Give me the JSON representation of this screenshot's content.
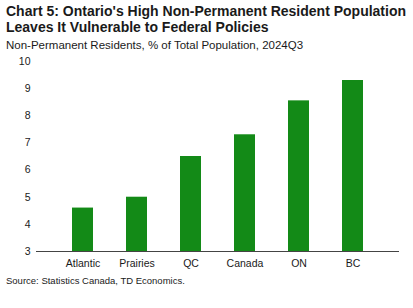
{
  "chart_data": {
    "type": "bar",
    "title": "Chart 5: Ontario's High Non-Permanent Resident Population Leaves It Vulnerable to Federal Policies",
    "subtitle": "Non-Permanent Residents, % of Total Population, 2024Q3",
    "caption": "Source: Statistics Canada, TD Economics.",
    "categories": [
      "Atlantic",
      "Prairies",
      "QC",
      "Canada",
      "ON",
      "BC"
    ],
    "values": [
      4.6,
      5.0,
      6.5,
      7.3,
      8.55,
      9.3
    ],
    "color": "#138a17",
    "ylim": [
      3,
      10
    ],
    "yticks": [
      3,
      4,
      5,
      6,
      7,
      8,
      9,
      10
    ],
    "grid": false
  }
}
